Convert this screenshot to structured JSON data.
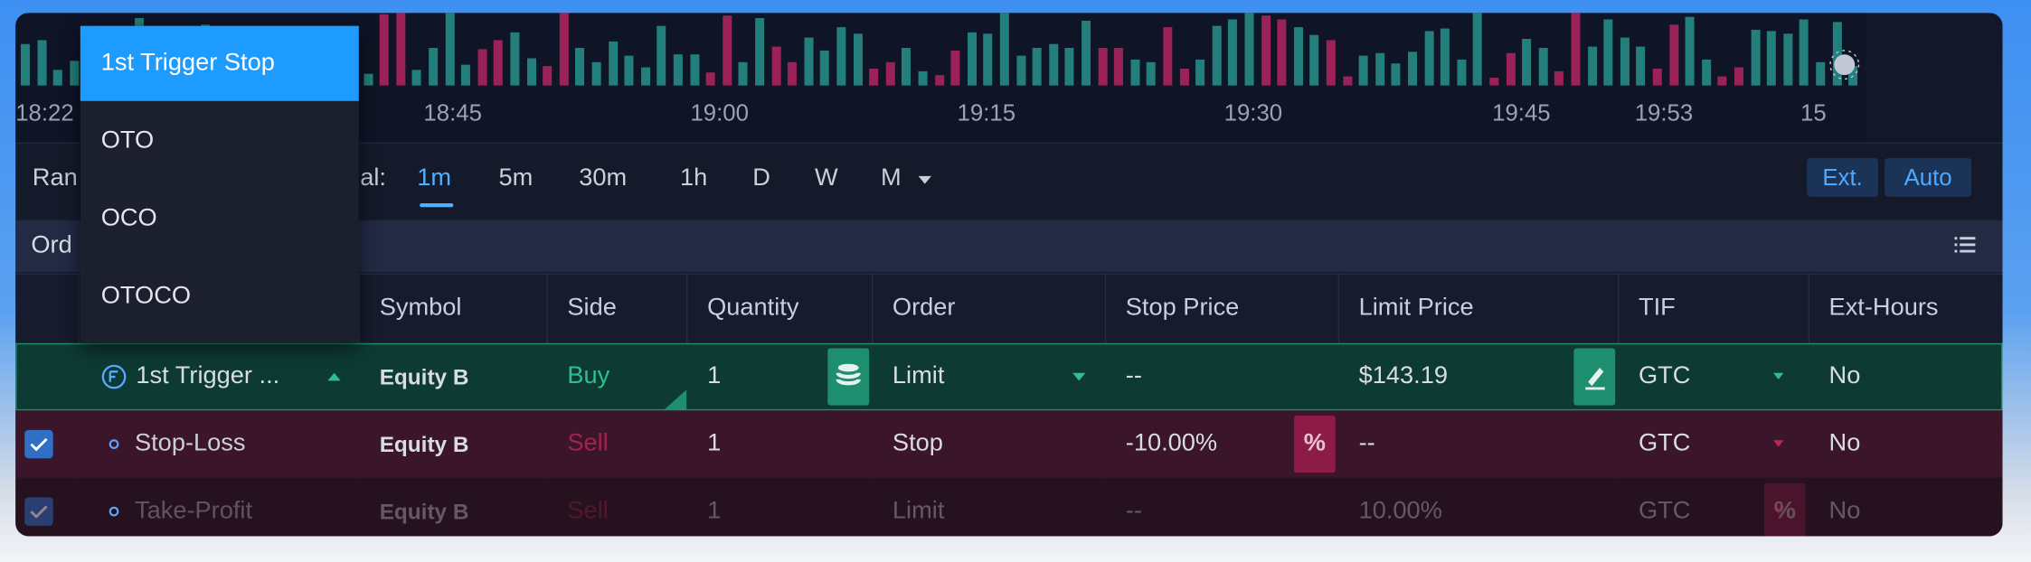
{
  "chart": {
    "time_labels": [
      "18:22",
      "18:45",
      "19:00",
      "19:15",
      "19:30",
      "19:45",
      "19:53",
      "15"
    ]
  },
  "toolbar": {
    "range_label": "Ran",
    "interval_label": "al:",
    "intervals": [
      "1m",
      "5m",
      "30m",
      "1h",
      "D",
      "W",
      "M"
    ],
    "selected_interval": "1m",
    "buttons": [
      "Ext.",
      "Auto"
    ]
  },
  "section": {
    "title": "Ord"
  },
  "table": {
    "headers": [
      "Symbol",
      "Side",
      "Quantity",
      "Order",
      "Stop Price",
      "Limit Price",
      "TIF",
      "Ext-Hours"
    ],
    "rows": [
      {
        "name": "1st Trigger ...",
        "symbol": "Equity B",
        "side": "Buy",
        "quantity": "1",
        "order": "Limit",
        "stop_price": "--",
        "limit_price": "$143.19",
        "tif": "GTC",
        "ext_hours": "No"
      },
      {
        "name": "Stop-Loss",
        "symbol": "Equity B",
        "side": "Sell",
        "quantity": "1",
        "order": "Stop",
        "stop_price": "-10.00%",
        "stop_button": "%",
        "limit_price": "--",
        "tif": "GTC",
        "ext_hours": "No"
      },
      {
        "name": "Take-Profit",
        "symbol": "Equity B",
        "side": "Sell",
        "quantity": "1",
        "order": "Limit",
        "stop_price": "--",
        "limit_price": "10.00%",
        "limit_button": "%",
        "tif": "GTC",
        "ext_hours": "No"
      }
    ]
  },
  "dropdown": {
    "items": [
      "1st Trigger Stop",
      "OTO",
      "OCO",
      "OTOCO"
    ],
    "selected": 0
  }
}
